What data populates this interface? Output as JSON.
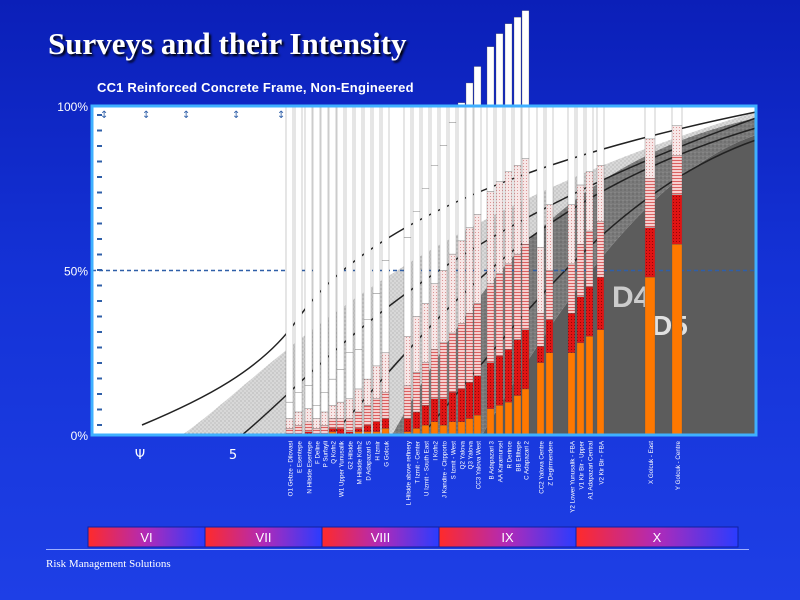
{
  "title": "Surveys and their Intensity",
  "footer": "Risk Management Solutions",
  "chart_data": {
    "type": "bar",
    "subtitle": "CC1 Reinforced Concrete Frame, Non-Engineered",
    "y_tick_labels": [
      "100%",
      "50%",
      "0%"
    ],
    "ylim": [
      0,
      100
    ],
    "x_labels_intensity": [
      "Ψ",
      "5"
    ],
    "intensity_bands": [
      "VI",
      "VII",
      "VIII",
      "IX",
      "X"
    ],
    "background_labels": [
      "D4",
      "D5"
    ],
    "series_names": [
      "D5",
      "D4",
      "D3",
      "D2",
      "D1"
    ],
    "colors": {
      "d5": "#ff7800",
      "d4": "#e01414",
      "d3": "#f0b4b4",
      "d2": "#f4dada",
      "d1": "#ffffff",
      "plot_bg": "#ffffff",
      "border": "#3fb0ff"
    },
    "surveys": [
      {
        "label": "O1 Gebze - Dilovasi",
        "d5": 0,
        "d4": 0,
        "d3": 2,
        "d2": 3,
        "d1": 5
      },
      {
        "label": "E Esentepe",
        "d5": 0,
        "d4": 0,
        "d3": 3,
        "d2": 4,
        "d1": 6
      },
      {
        "label": "N Hilside Esentepe",
        "d5": 0,
        "d4": 1,
        "d3": 3,
        "d2": 4,
        "d1": 7
      },
      {
        "label": "F Deline",
        "d5": 0,
        "d4": 0,
        "d3": 2,
        "d2": 3,
        "d1": 4
      },
      {
        "label": "P Surfayli",
        "d5": 0,
        "d4": 0,
        "d3": 3,
        "d2": 4,
        "d1": 6
      },
      {
        "label": "Q Kofn2",
        "d5": 1,
        "d4": 1,
        "d3": 3,
        "d2": 4,
        "d1": 8
      },
      {
        "label": "W1 Upper Yunusalik",
        "d5": 0,
        "d4": 2,
        "d3": 3,
        "d2": 5,
        "d1": 10
      },
      {
        "label": "G2 Hilside",
        "d5": 0,
        "d4": 1,
        "d3": 4,
        "d2": 6,
        "d1": 14
      },
      {
        "label": "M Hilside Kofn2",
        "d5": 1,
        "d4": 1,
        "d3": 5,
        "d2": 7,
        "d1": 12
      },
      {
        "label": "D Adapazari S",
        "d5": 1,
        "d4": 2,
        "d3": 6,
        "d2": 8,
        "d1": 18
      },
      {
        "label": "H Izmir",
        "d5": 1,
        "d4": 3,
        "d3": 7,
        "d2": 10,
        "d1": 22
      },
      {
        "label": "G Golcuk",
        "d5": 2,
        "d4": 3,
        "d3": 8,
        "d2": 12,
        "d1": 28
      },
      {
        "label": "L Hilside above refinery",
        "d5": 1,
        "d4": 4,
        "d3": 10,
        "d2": 15,
        "d1": 30
      },
      {
        "label": "T Izmit - Center",
        "d5": 2,
        "d4": 5,
        "d3": 12,
        "d2": 17,
        "d1": 32
      },
      {
        "label": "U Izmit - South East",
        "d5": 3,
        "d4": 6,
        "d3": 13,
        "d2": 18,
        "d1": 35
      },
      {
        "label": "I Kofn2",
        "d5": 4,
        "d4": 7,
        "d3": 15,
        "d2": 20,
        "d1": 36
      },
      {
        "label": "J Kandire - Cirpporto",
        "d5": 3,
        "d4": 8,
        "d3": 17,
        "d2": 22,
        "d1": 38
      },
      {
        "label": "S Izmit - West",
        "d5": 4,
        "d4": 9,
        "d3": 18,
        "d2": 24,
        "d1": 40
      },
      {
        "label": "Q2 Yalova",
        "d5": 4,
        "d4": 10,
        "d3": 20,
        "d2": 25,
        "d1": 42
      },
      {
        "label": "Q3 Yalova",
        "d5": 5,
        "d4": 11,
        "d3": 21,
        "d2": 26,
        "d1": 44
      },
      {
        "label": "CC3 Yalova West",
        "d5": 6,
        "d4": 12,
        "d3": 22,
        "d2": 27,
        "d1": 45
      },
      {
        "label": "B Adapazari 3",
        "d5": 8,
        "d4": 14,
        "d3": 24,
        "d2": 28,
        "d1": 44
      },
      {
        "label": "AA Karamursel",
        "d5": 9,
        "d4": 15,
        "d3": 25,
        "d2": 28,
        "d1": 45
      },
      {
        "label": "R Derince",
        "d5": 10,
        "d4": 16,
        "d3": 26,
        "d2": 28,
        "d1": 45
      },
      {
        "label": "BB Efiltepe",
        "d5": 12,
        "d4": 17,
        "d3": 26,
        "d2": 27,
        "d1": 45
      },
      {
        "label": "C Adapazari 2",
        "d5": 14,
        "d4": 18,
        "d3": 26,
        "d2": 26,
        "d1": 45
      },
      {
        "label": "CC2 Yalova Centre",
        "d5": 22,
        "d4": 5,
        "d3": 10,
        "d2": 20,
        "d1": 43
      },
      {
        "label": "Z Degirmendere",
        "d5": 25,
        "d4": 10,
        "d3": 15,
        "d2": 20,
        "d1": 30
      },
      {
        "label": "Y2 Lower Yunusalik - FBA",
        "d5": 25,
        "d4": 12,
        "d3": 15,
        "d2": 18,
        "d1": 30
      },
      {
        "label": "V1 Kir Bir - Upper",
        "d5": 28,
        "d4": 14,
        "d3": 16,
        "d2": 18,
        "d1": 24
      },
      {
        "label": "A1 Adapazari Central",
        "d5": 30,
        "d4": 15,
        "d3": 17,
        "d2": 18,
        "d1": 20
      },
      {
        "label": "V2 Kir Bir - FBA",
        "d5": 32,
        "d4": 16,
        "d3": 17,
        "d2": 17,
        "d1": 18
      },
      {
        "label": "X Golcuk - East",
        "d5": 48,
        "d4": 15,
        "d3": 15,
        "d2": 12,
        "d1": 10
      },
      {
        "label": "Y Golcuk - Centre",
        "d5": 58,
        "d4": 15,
        "d3": 12,
        "d2": 9,
        "d1": 6
      }
    ]
  }
}
